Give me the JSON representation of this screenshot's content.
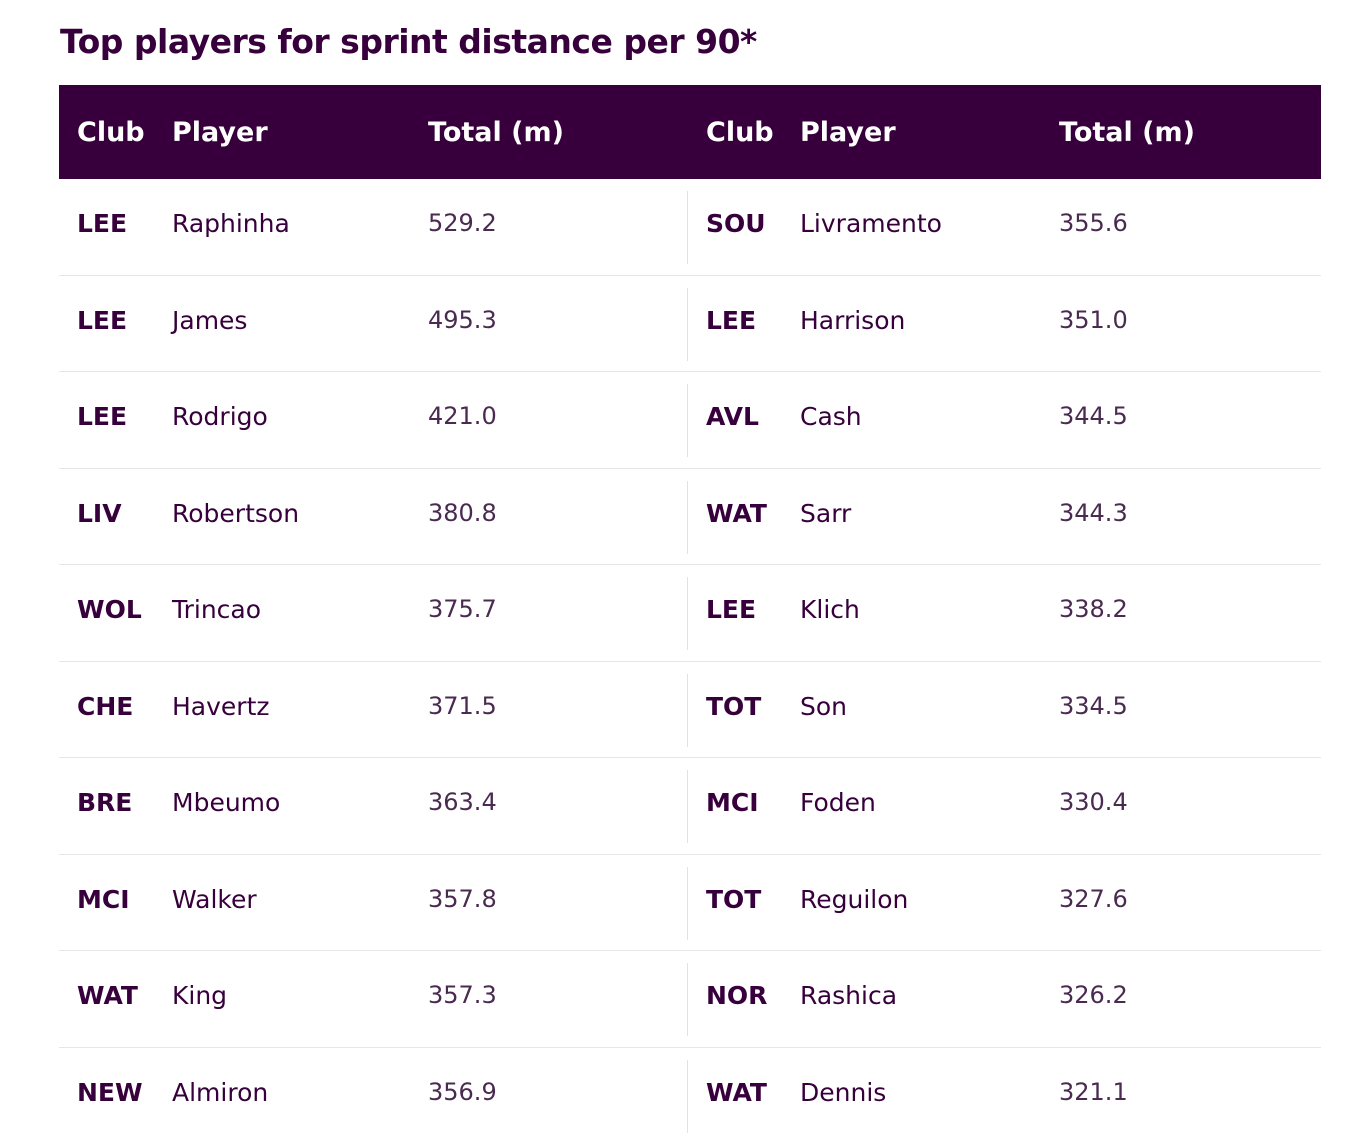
{
  "title": "Top players for sprint distance per 90*",
  "headers": {
    "club": "Club",
    "player": "Player",
    "total": "Total (m)"
  },
  "left": [
    {
      "club": "LEE",
      "player": "Raphinha",
      "total": "529.2"
    },
    {
      "club": "LEE",
      "player": "James",
      "total": "495.3"
    },
    {
      "club": "LEE",
      "player": "Rodrigo",
      "total": "421.0"
    },
    {
      "club": "LIV",
      "player": "Robertson",
      "total": "380.8"
    },
    {
      "club": "WOL",
      "player": "Trincao",
      "total": "375.7"
    },
    {
      "club": "CHE",
      "player": "Havertz",
      "total": "371.5"
    },
    {
      "club": "BRE",
      "player": "Mbeumo",
      "total": "363.4"
    },
    {
      "club": "MCI",
      "player": "Walker",
      "total": "357.8"
    },
    {
      "club": "WAT",
      "player": "King",
      "total": "357.3"
    },
    {
      "club": "NEW",
      "player": "Almiron",
      "total": "356.9"
    }
  ],
  "right": [
    {
      "club": "SOU",
      "player": "Livramento",
      "total": "355.6"
    },
    {
      "club": "LEE",
      "player": "Harrison",
      "total": "351.0"
    },
    {
      "club": "AVL",
      "player": "Cash",
      "total": "344.5"
    },
    {
      "club": "WAT",
      "player": "Sarr",
      "total": "344.3"
    },
    {
      "club": "LEE",
      "player": "Klich",
      "total": "338.2"
    },
    {
      "club": "TOT",
      "player": "Son",
      "total": "334.5"
    },
    {
      "club": "MCI",
      "player": "Foden",
      "total": "330.4"
    },
    {
      "club": "TOT",
      "player": "Reguilon",
      "total": "327.6"
    },
    {
      "club": "NOR",
      "player": "Rashica",
      "total": "326.2"
    },
    {
      "club": "WAT",
      "player": "Dennis",
      "total": "321.1"
    }
  ],
  "colors": {
    "header_bg": "#37003c",
    "header_text": "#ffffff",
    "body_text": "#37003c"
  }
}
